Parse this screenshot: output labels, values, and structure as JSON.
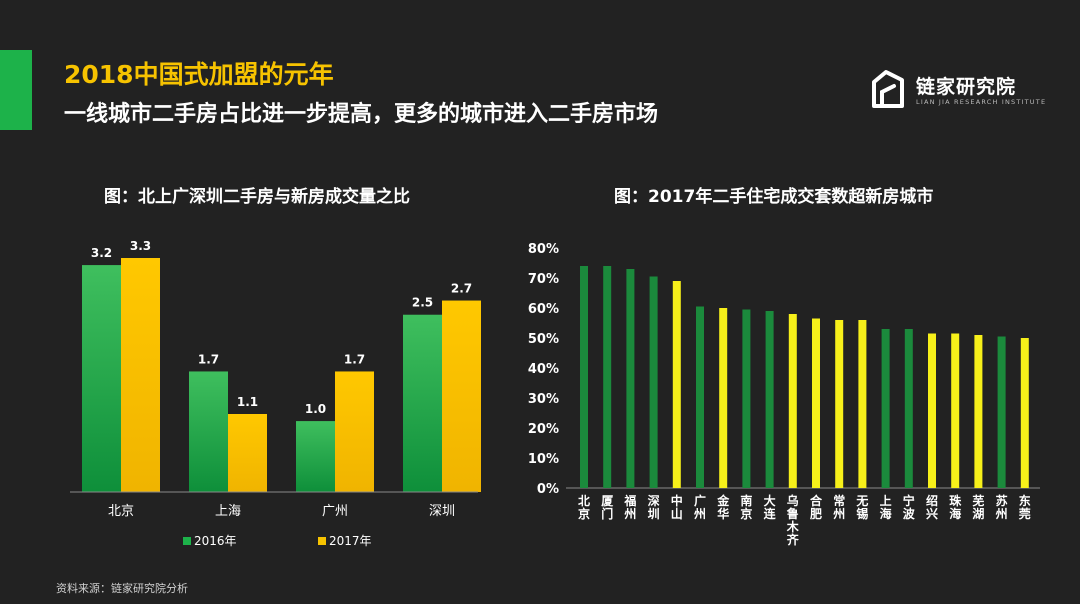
{
  "header": {
    "title": "2018中国式加盟的元年",
    "subtitle": "一线城市二手房占比进一步提高，更多的城市进入二手房市场"
  },
  "logo": {
    "name": "链家研究院",
    "tagline": "LIAN JIA RESEARCH INSTITUTE"
  },
  "source": "资料来源：链家研究院分析",
  "colors": {
    "green": "#1db24a",
    "yellow": "#f7c300",
    "accent": "#1db24a",
    "title": "#f7c300"
  },
  "chart_data": [
    {
      "type": "bar",
      "title": "图：北上广深圳二手房与新房成交量之比",
      "categories": [
        "北京",
        "上海",
        "广州",
        "深圳"
      ],
      "series": [
        {
          "name": "2016年",
          "values": [
            3.2,
            1.7,
            1.0,
            2.5
          ],
          "color": "#1db24a"
        },
        {
          "name": "2017年",
          "values": [
            3.3,
            1.1,
            1.7,
            2.7
          ],
          "color": "#f7c300"
        }
      ],
      "value_labels": {
        "s0": [
          "3.2",
          "1.7",
          "1.0",
          "2.5"
        ],
        "s1": [
          "3.3",
          "1.1",
          "1.7",
          "2.7"
        ]
      },
      "ylim": [
        0,
        3.3
      ],
      "legend": "bottom",
      "grid": false
    },
    {
      "type": "bar",
      "title": "图：2017年二手住宅成交套数超新房城市",
      "categories": [
        "北京",
        "厦门",
        "福州",
        "深圳",
        "中山",
        "广州",
        "金华",
        "南京",
        "大连",
        "乌鲁木齐",
        "合肥",
        "常州",
        "无锡",
        "上海",
        "宁波",
        "绍兴",
        "珠海",
        "芜湖",
        "苏州",
        "东莞"
      ],
      "values": [
        74,
        74,
        73,
        70.5,
        69,
        60.5,
        60,
        59.5,
        59,
        58,
        56.5,
        56,
        56,
        53,
        53,
        51.5,
        51.5,
        51,
        50.5,
        50
      ],
      "bar_colors": [
        "green",
        "green",
        "green",
        "green",
        "yellow",
        "green",
        "yellow",
        "green",
        "green",
        "yellow",
        "yellow",
        "yellow",
        "yellow",
        "green",
        "green",
        "yellow",
        "yellow",
        "yellow",
        "green",
        "yellow"
      ],
      "yticks": [
        "0%",
        "10%",
        "20%",
        "30%",
        "40%",
        "50%",
        "60%",
        "70%",
        "80%"
      ],
      "ylim": [
        0,
        80
      ],
      "grid": false
    }
  ]
}
